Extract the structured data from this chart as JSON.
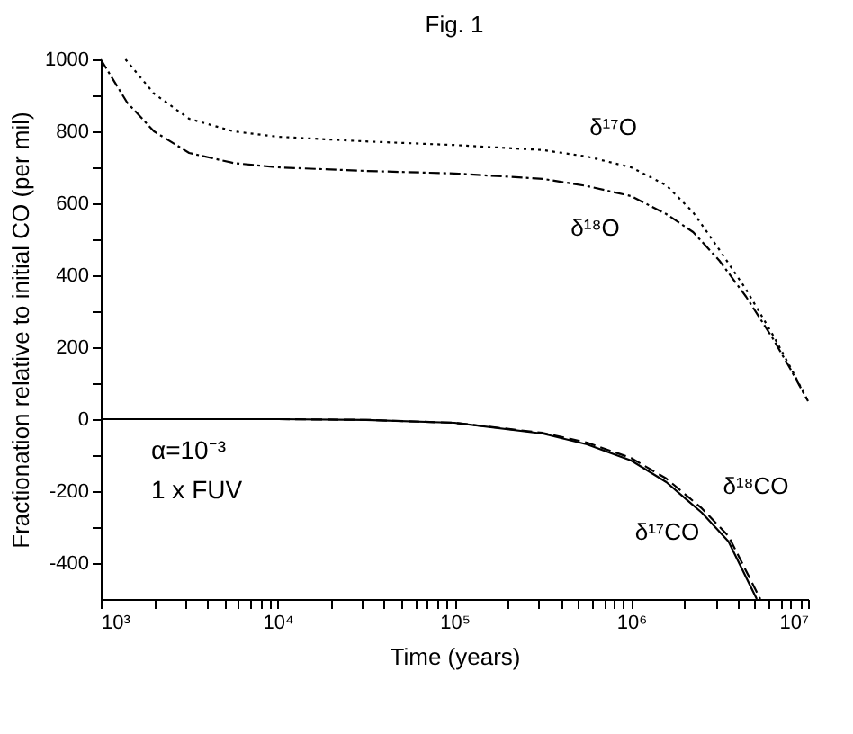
{
  "chart_data": {
    "type": "line",
    "title": "Fig. 1",
    "xlabel": "Time (years)",
    "ylabel": "Fractionation relative to initial CO (per mil)",
    "log": "x",
    "grid": false,
    "marker": "none",
    "xlim": [
      1000,
      10000000
    ],
    "ylim": [
      -500,
      1000
    ],
    "xticks": [
      {
        "value": 1000,
        "label": "10³"
      },
      {
        "value": 2000,
        "label": null
      },
      {
        "value": 3000,
        "label": null
      },
      {
        "value": 4000,
        "label": null
      },
      {
        "value": 5000,
        "label": null
      },
      {
        "value": 6000,
        "label": null
      },
      {
        "value": 7000,
        "label": null
      },
      {
        "value": 8000,
        "label": null
      },
      {
        "value": 9000,
        "label": null
      },
      {
        "value": 10000,
        "label": "10⁴"
      },
      {
        "value": 20000,
        "label": null
      },
      {
        "value": 30000,
        "label": null
      },
      {
        "value": 40000,
        "label": null
      },
      {
        "value": 50000,
        "label": null
      },
      {
        "value": 60000,
        "label": null
      },
      {
        "value": 70000,
        "label": null
      },
      {
        "value": 80000,
        "label": null
      },
      {
        "value": 90000,
        "label": null
      },
      {
        "value": 100000,
        "label": "10⁵"
      },
      {
        "value": 200000,
        "label": null
      },
      {
        "value": 300000,
        "label": null
      },
      {
        "value": 400000,
        "label": null
      },
      {
        "value": 500000,
        "label": null
      },
      {
        "value": 600000,
        "label": null
      },
      {
        "value": 700000,
        "label": null
      },
      {
        "value": 800000,
        "label": null
      },
      {
        "value": 900000,
        "label": null
      },
      {
        "value": 1000000,
        "label": "10⁶"
      },
      {
        "value": 2000000,
        "label": null
      },
      {
        "value": 3000000,
        "label": null
      },
      {
        "value": 4000000,
        "label": null
      },
      {
        "value": 5000000,
        "label": null
      },
      {
        "value": 6000000,
        "label": null
      },
      {
        "value": 7000000,
        "label": null
      },
      {
        "value": 8000000,
        "label": null
      },
      {
        "value": 9000000,
        "label": null
      },
      {
        "value": 10000000,
        "label": "10⁷"
      }
    ],
    "yticks": [
      -400,
      {
        "value": -300,
        "label": null
      },
      -200,
      {
        "value": -100,
        "label": null
      },
      0,
      {
        "value": 100,
        "label": null
      },
      200,
      {
        "value": 300,
        "label": null
      },
      400,
      {
        "value": 500,
        "label": null
      },
      600,
      {
        "value": 700,
        "label": null
      },
      800,
      {
        "value": 900,
        "label": null
      },
      1000
    ],
    "series": [
      {
        "name": "δ¹⁷O",
        "color": "#000000",
        "line_style": "dotted",
        "x": [
          1380,
          2000,
          3160,
          5620,
          10000,
          31600,
          100000,
          316000,
          562000,
          1000000,
          1580000,
          2240000,
          3160000,
          4470000,
          6310000,
          7940000,
          10000000
        ],
        "values": [
          1000,
          905,
          835,
          800,
          785,
          772,
          762,
          748,
          730,
          700,
          650,
          575,
          470,
          360,
          235,
          145,
          50
        ]
      },
      {
        "name": "δ¹⁸O",
        "color": "#000000",
        "line_style": "dashdot",
        "x": [
          1000,
          1410,
          2000,
          3160,
          5620,
          10000,
          31600,
          100000,
          316000,
          562000,
          1000000,
          1580000,
          2240000,
          3160000,
          4470000,
          6310000,
          7940000,
          10000000
        ],
        "values": [
          1000,
          880,
          800,
          740,
          712,
          700,
          690,
          683,
          668,
          648,
          620,
          570,
          520,
          440,
          340,
          225,
          140,
          50
        ]
      },
      {
        "name": "δ¹⁸CO",
        "color": "#000000",
        "line_style": "dashed",
        "x": [
          1000,
          10000,
          31600,
          100000,
          316000,
          562000,
          1000000,
          1580000,
          2510000,
          3550000,
          5370000
        ],
        "values": [
          0,
          0,
          -2,
          -10,
          -38,
          -65,
          -108,
          -165,
          -248,
          -325,
          -500
        ]
      },
      {
        "name": "δ¹⁷CO",
        "color": "#000000",
        "line_style": "solid",
        "x": [
          1000,
          10000,
          31600,
          100000,
          316000,
          562000,
          1000000,
          1580000,
          2510000,
          3550000,
          5130000
        ],
        "values": [
          0,
          0,
          -2,
          -10,
          -40,
          -70,
          -115,
          -175,
          -260,
          -340,
          -500
        ]
      }
    ],
    "annotations": [
      "α=10⁻³",
      "1 x FUV"
    ]
  }
}
